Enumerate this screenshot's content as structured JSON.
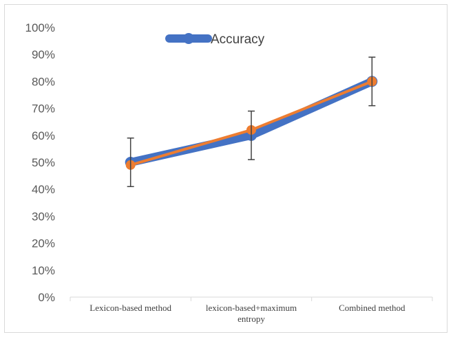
{
  "chart_data": {
    "type": "line",
    "categories": [
      [
        "Lexicon-based method"
      ],
      [
        "lexicon-based+maximum",
        "entropy"
      ],
      [
        "Combined method"
      ]
    ],
    "series": [
      {
        "name": "Accuracy",
        "values": [
          0.5,
          0.6,
          0.8
        ],
        "color": "#4472c4",
        "error_minus": [
          0.09,
          0.09,
          0.09
        ],
        "error_plus": [
          0.09,
          0.09,
          0.09
        ]
      },
      {
        "values": [
          0.49,
          0.62,
          0.8
        ],
        "color": "#ed7d31"
      }
    ],
    "ylim": [
      0,
      1
    ],
    "yticks": [
      "0%",
      "10%",
      "20%",
      "30%",
      "40%",
      "50%",
      "60%",
      "70%",
      "80%",
      "90%",
      "100%"
    ],
    "grid": false,
    "legend": {
      "position": "top",
      "entries": [
        "Accuracy"
      ]
    },
    "title": "",
    "xlabel": "",
    "ylabel": ""
  }
}
